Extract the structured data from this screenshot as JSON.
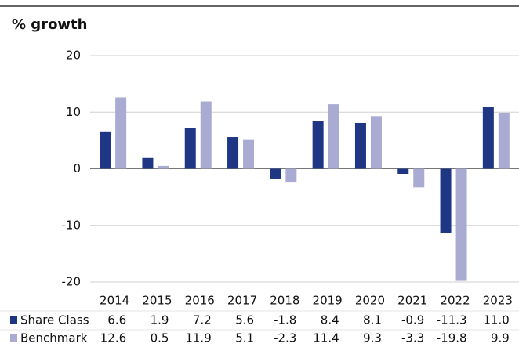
{
  "chart_data": {
    "type": "bar",
    "title": "% growth",
    "categories": [
      "2014",
      "2015",
      "2016",
      "2017",
      "2018",
      "2019",
      "2020",
      "2021",
      "2022",
      "2023"
    ],
    "series": [
      {
        "name": "Share Class",
        "color": "#1f3684",
        "values": [
          6.6,
          1.9,
          7.2,
          5.6,
          -1.8,
          8.4,
          8.1,
          -0.9,
          -11.3,
          11.0
        ],
        "value_labels": [
          "6.6",
          "1.9",
          "7.2",
          "5.6",
          "-1.8",
          "8.4",
          "8.1",
          "-0.9",
          "-11.3",
          "11.0"
        ]
      },
      {
        "name": "Benchmark",
        "color": "#a9abd2",
        "values": [
          12.6,
          0.5,
          11.9,
          5.1,
          -2.3,
          11.4,
          9.3,
          -3.3,
          -19.8,
          9.9
        ],
        "value_labels": [
          "12.6",
          "0.5",
          "11.9",
          "5.1",
          "-2.3",
          "11.4",
          "9.3",
          "-3.3",
          "-19.8",
          "9.9"
        ]
      }
    ],
    "ylim": [
      -20,
      20
    ],
    "yticks": [
      -20,
      -10,
      0,
      10,
      20
    ],
    "grid": true
  }
}
